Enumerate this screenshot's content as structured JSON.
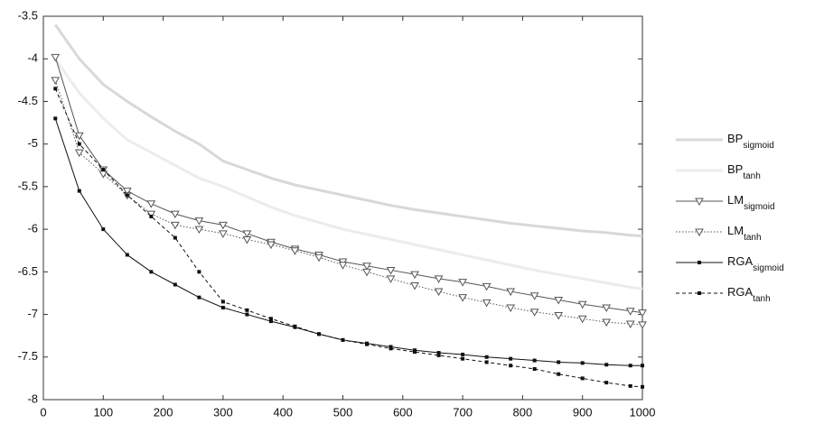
{
  "chart_data": {
    "type": "line",
    "x": [
      20,
      60,
      100,
      140,
      180,
      220,
      260,
      300,
      340,
      380,
      420,
      460,
      500,
      540,
      580,
      620,
      660,
      700,
      740,
      780,
      820,
      860,
      900,
      940,
      980,
      1000
    ],
    "series": [
      {
        "name": "BP",
        "subscript": "sigmoid",
        "color": "#d8d8d8",
        "dash": "solid",
        "marker": "none",
        "values": [
          -3.6,
          -4.0,
          -4.3,
          -4.5,
          -4.68,
          -4.85,
          -5.0,
          -5.2,
          -5.3,
          -5.4,
          -5.48,
          -5.54,
          -5.6,
          -5.66,
          -5.72,
          -5.77,
          -5.81,
          -5.85,
          -5.89,
          -5.93,
          -5.96,
          -5.99,
          -6.02,
          -6.04,
          -6.07,
          -6.08
        ]
      },
      {
        "name": "BP",
        "subscript": "tanh",
        "color": "#ececec",
        "dash": "solid",
        "marker": "none",
        "values": [
          -4.0,
          -4.4,
          -4.7,
          -4.95,
          -5.1,
          -5.25,
          -5.4,
          -5.5,
          -5.62,
          -5.74,
          -5.84,
          -5.92,
          -6.0,
          -6.06,
          -6.12,
          -6.18,
          -6.24,
          -6.3,
          -6.36,
          -6.42,
          -6.48,
          -6.53,
          -6.58,
          -6.63,
          -6.68,
          -6.7
        ]
      },
      {
        "name": "LM",
        "subscript": "sigmoid",
        "color": "#555555",
        "dash": "solid",
        "marker": "triangle",
        "values": [
          -3.98,
          -4.9,
          -5.3,
          -5.55,
          -5.7,
          -5.82,
          -5.9,
          -5.95,
          -6.05,
          -6.15,
          -6.23,
          -6.3,
          -6.38,
          -6.43,
          -6.48,
          -6.53,
          -6.58,
          -6.62,
          -6.67,
          -6.73,
          -6.78,
          -6.83,
          -6.88,
          -6.92,
          -6.96,
          -6.98
        ]
      },
      {
        "name": "LM",
        "subscript": "tanh",
        "color": "#555555",
        "dash": "dotted",
        "marker": "triangle",
        "values": [
          -4.25,
          -5.1,
          -5.35,
          -5.6,
          -5.82,
          -5.95,
          -6.0,
          -6.05,
          -6.12,
          -6.18,
          -6.25,
          -6.33,
          -6.42,
          -6.5,
          -6.58,
          -6.66,
          -6.73,
          -6.8,
          -6.86,
          -6.92,
          -6.97,
          -7.01,
          -7.05,
          -7.09,
          -7.11,
          -7.12
        ]
      },
      {
        "name": "RGA",
        "subscript": "sigmoid",
        "color": "#111111",
        "dash": "solid",
        "marker": "square",
        "values": [
          -4.7,
          -5.55,
          -6.0,
          -6.3,
          -6.5,
          -6.65,
          -6.8,
          -6.92,
          -7.0,
          -7.08,
          -7.15,
          -7.23,
          -7.3,
          -7.34,
          -7.38,
          -7.42,
          -7.45,
          -7.47,
          -7.5,
          -7.52,
          -7.54,
          -7.56,
          -7.57,
          -7.59,
          -7.6,
          -7.6
        ]
      },
      {
        "name": "RGA",
        "subscript": "tanh",
        "color": "#111111",
        "dash": "dashed",
        "marker": "square",
        "values": [
          -4.35,
          -5.0,
          -5.3,
          -5.6,
          -5.85,
          -6.1,
          -6.5,
          -6.85,
          -6.95,
          -7.05,
          -7.14,
          -7.23,
          -7.3,
          -7.35,
          -7.4,
          -7.44,
          -7.48,
          -7.52,
          -7.56,
          -7.6,
          -7.64,
          -7.7,
          -7.75,
          -7.8,
          -7.84,
          -7.85
        ]
      }
    ],
    "xlim": [
      0,
      1000
    ],
    "xticks": [
      0,
      100,
      200,
      300,
      400,
      500,
      600,
      700,
      800,
      900,
      1000
    ],
    "ylim": [
      -8,
      -3.5
    ],
    "yticks": [
      -8,
      -7.5,
      -7,
      -6.5,
      -6,
      -5.5,
      -5,
      -4.5,
      -4,
      -3.5
    ],
    "grid": false,
    "legend": "right"
  }
}
